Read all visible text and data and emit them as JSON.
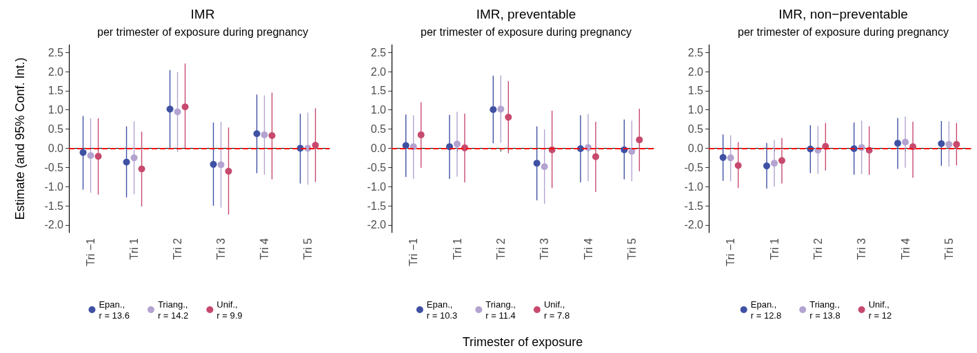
{
  "chart_data": [
    {
      "type": "scatter",
      "title": "IMR",
      "subtitle": "per trimester of exposure during pregnancy",
      "ylabel": "Estimate (and 95% Conf. Int.)",
      "categories": [
        "Tri −1",
        "Tri 1",
        "Tri 2",
        "Tri 3",
        "Tri 4",
        "Tri 5"
      ],
      "marker": "circle",
      "grid": false,
      "legend": "bottom",
      "ylim": [
        -2.2,
        2.7
      ],
      "yticks": [
        {
          "value": -2,
          "label": "-2.0"
        },
        {
          "value": -1.5,
          "label": "-1.5"
        },
        {
          "value": -1,
          "label": "-1.0"
        },
        {
          "value": -0.5,
          "label": "-0.5"
        },
        {
          "value": 0,
          "label": "0.0"
        },
        {
          "value": 0.5,
          "label": "0.5"
        },
        {
          "value": 1,
          "label": "1.0"
        },
        {
          "value": 1.5,
          "label": "1.5"
        },
        {
          "value": 2,
          "label": "2.0"
        },
        {
          "value": 2.5,
          "label": "2.5"
        }
      ],
      "ref_lines": [
        {
          "axis": "y",
          "value": 0,
          "color": "#ff0000",
          "line_style": "dashed"
        }
      ],
      "series": [
        {
          "name": "Epan.,\nr = 13.6",
          "color": "#3f51a3",
          "values": [
            -0.11,
            -0.36,
            1.02,
            -0.42,
            0.38,
            0
          ],
          "errors": [
            [
              -1.08,
              0.84
            ],
            [
              -1.28,
              0.57
            ],
            [
              0,
              2.04
            ],
            [
              -1.5,
              0.67
            ],
            [
              -0.65,
              1.4
            ],
            [
              -0.92,
              0.9
            ]
          ]
        },
        {
          "name": "Triang.,\nr = 14.2",
          "color": "#b3a3d0",
          "values": [
            -0.19,
            -0.25,
            0.95,
            -0.43,
            0.35,
            0
          ],
          "errors": [
            [
              -1.16,
              0.78
            ],
            [
              -1.2,
              0.7
            ],
            [
              -0.08,
              1.99
            ],
            [
              -1.55,
              0.69
            ],
            [
              -0.69,
              1.38
            ],
            [
              -0.95,
              0.93
            ]
          ]
        },
        {
          "name": "Unif.,\nr = 9.9",
          "color": "#c74a6e",
          "values": [
            -0.21,
            -0.54,
            1.08,
            -0.6,
            0.33,
            0.08
          ],
          "errors": [
            [
              -1.21,
              0.78
            ],
            [
              -1.52,
              0.43
            ],
            [
              -0.03,
              2.21
            ],
            [
              -1.73,
              0.54
            ],
            [
              -0.81,
              1.45
            ],
            [
              -0.88,
              1.04
            ]
          ]
        }
      ]
    },
    {
      "type": "scatter",
      "title": "IMR, preventable",
      "subtitle": "per trimester of exposure during pregnancy",
      "xlabel": "Trimester of exposure",
      "categories": [
        "Tri −1",
        "Tri 1",
        "Tri 2",
        "Tri 3",
        "Tri 4",
        "Tri 5"
      ],
      "marker": "circle",
      "grid": false,
      "legend": "bottom",
      "ylim": [
        -2.2,
        2.7
      ],
      "yticks": [
        {
          "value": -2,
          "label": "-2.0"
        },
        {
          "value": -1.5,
          "label": "-1.5"
        },
        {
          "value": -1,
          "label": "-1.0"
        },
        {
          "value": -0.5,
          "label": "-0.5"
        },
        {
          "value": 0,
          "label": "0.0"
        },
        {
          "value": 0.5,
          "label": "0.5"
        },
        {
          "value": 1,
          "label": "1.0"
        },
        {
          "value": 1.5,
          "label": "1.5"
        },
        {
          "value": 2,
          "label": "2.0"
        },
        {
          "value": 2.5,
          "label": "2.5"
        }
      ],
      "ref_lines": [
        {
          "axis": "y",
          "value": 0,
          "color": "#ff0000",
          "line_style": "dashed"
        }
      ],
      "series": [
        {
          "name": "Epan.,\nr = 10.3",
          "color": "#3f51a3",
          "values": [
            0.07,
            0.04,
            1.01,
            -0.39,
            -0.01,
            -0.04
          ],
          "errors": [
            [
              -0.75,
              0.88
            ],
            [
              -0.8,
              0.87
            ],
            [
              0.13,
              1.89
            ],
            [
              -1.36,
              0.57
            ],
            [
              -0.89,
              0.86
            ],
            [
              -0.81,
              0.75
            ]
          ]
        },
        {
          "name": "Triang.,\nr = 11.4",
          "color": "#b3a3d0",
          "values": [
            0.04,
            0.11,
            1.02,
            -0.48,
            0.02,
            -0.08
          ],
          "errors": [
            [
              -0.8,
              0.86
            ],
            [
              -0.74,
              0.95
            ],
            [
              0.14,
              1.9
            ],
            [
              -1.45,
              0.49
            ],
            [
              -0.86,
              0.89
            ],
            [
              -0.86,
              0.72
            ]
          ]
        },
        {
          "name": "Unif.,\nr = 7.8",
          "color": "#c74a6e",
          "values": [
            0.35,
            0.01,
            0.81,
            -0.04,
            -0.22,
            0.22
          ],
          "errors": [
            [
              -0.51,
              1.2
            ],
            [
              -0.89,
              0.9
            ],
            [
              -0.13,
              1.75
            ],
            [
              -1.04,
              0.98
            ],
            [
              -1.14,
              0.69
            ],
            [
              -0.6,
              1.03
            ]
          ]
        }
      ]
    },
    {
      "type": "scatter",
      "title": "IMR, non−preventable",
      "subtitle": "per trimester of exposure during pregnancy",
      "categories": [
        "Tri −1",
        "Tri 1",
        "Tri 2",
        "Tri 3",
        "Tri 4",
        "Tri 5"
      ],
      "marker": "circle",
      "grid": false,
      "legend": "bottom",
      "ylim": [
        -2.2,
        2.7
      ],
      "yticks": [
        {
          "value": -2,
          "label": "-2.0"
        },
        {
          "value": -1.5,
          "label": "-1.5"
        },
        {
          "value": -1,
          "label": "-1.0"
        },
        {
          "value": -0.5,
          "label": "-0.5"
        },
        {
          "value": 0,
          "label": "0.0"
        },
        {
          "value": 0.5,
          "label": "0.5"
        },
        {
          "value": 1,
          "label": "1.0"
        },
        {
          "value": 1.5,
          "label": "1.5"
        },
        {
          "value": 2,
          "label": "2.0"
        },
        {
          "value": 2.5,
          "label": "2.5"
        }
      ],
      "ref_lines": [
        {
          "axis": "y",
          "value": 0,
          "color": "#ff0000",
          "line_style": "dashed"
        }
      ],
      "series": [
        {
          "name": "Epan.,\nr = 12.8",
          "color": "#3f51a3",
          "values": [
            -0.24,
            -0.46,
            -0.02,
            -0.01,
            0.13,
            0.12
          ],
          "errors": [
            [
              -0.85,
              0.36
            ],
            [
              -1.05,
              0.14
            ],
            [
              -0.65,
              0.6
            ],
            [
              -0.69,
              0.67
            ],
            [
              -0.54,
              0.79
            ],
            [
              -0.46,
              0.71
            ]
          ]
        },
        {
          "name": "Triang.,\nr = 13.8",
          "color": "#b3a3d0",
          "values": [
            -0.25,
            -0.39,
            -0.05,
            0.02,
            0.16,
            0.1
          ],
          "errors": [
            [
              -0.86,
              0.34
            ],
            [
              -1,
              0.22
            ],
            [
              -0.67,
              0.58
            ],
            [
              -0.67,
              0.72
            ],
            [
              -0.51,
              0.83
            ],
            [
              -0.48,
              0.7
            ]
          ]
        },
        {
          "name": "Unif.,\nr = 12",
          "color": "#c74a6e",
          "values": [
            -0.45,
            -0.32,
            0.05,
            -0.05,
            0.04,
            0.1
          ],
          "errors": [
            [
              -1.04,
              0.16
            ],
            [
              -0.92,
              0.27
            ],
            [
              -0.58,
              0.66
            ],
            [
              -0.69,
              0.57
            ],
            [
              -0.77,
              0.69
            ],
            [
              -0.45,
              0.66
            ]
          ]
        }
      ]
    }
  ]
}
